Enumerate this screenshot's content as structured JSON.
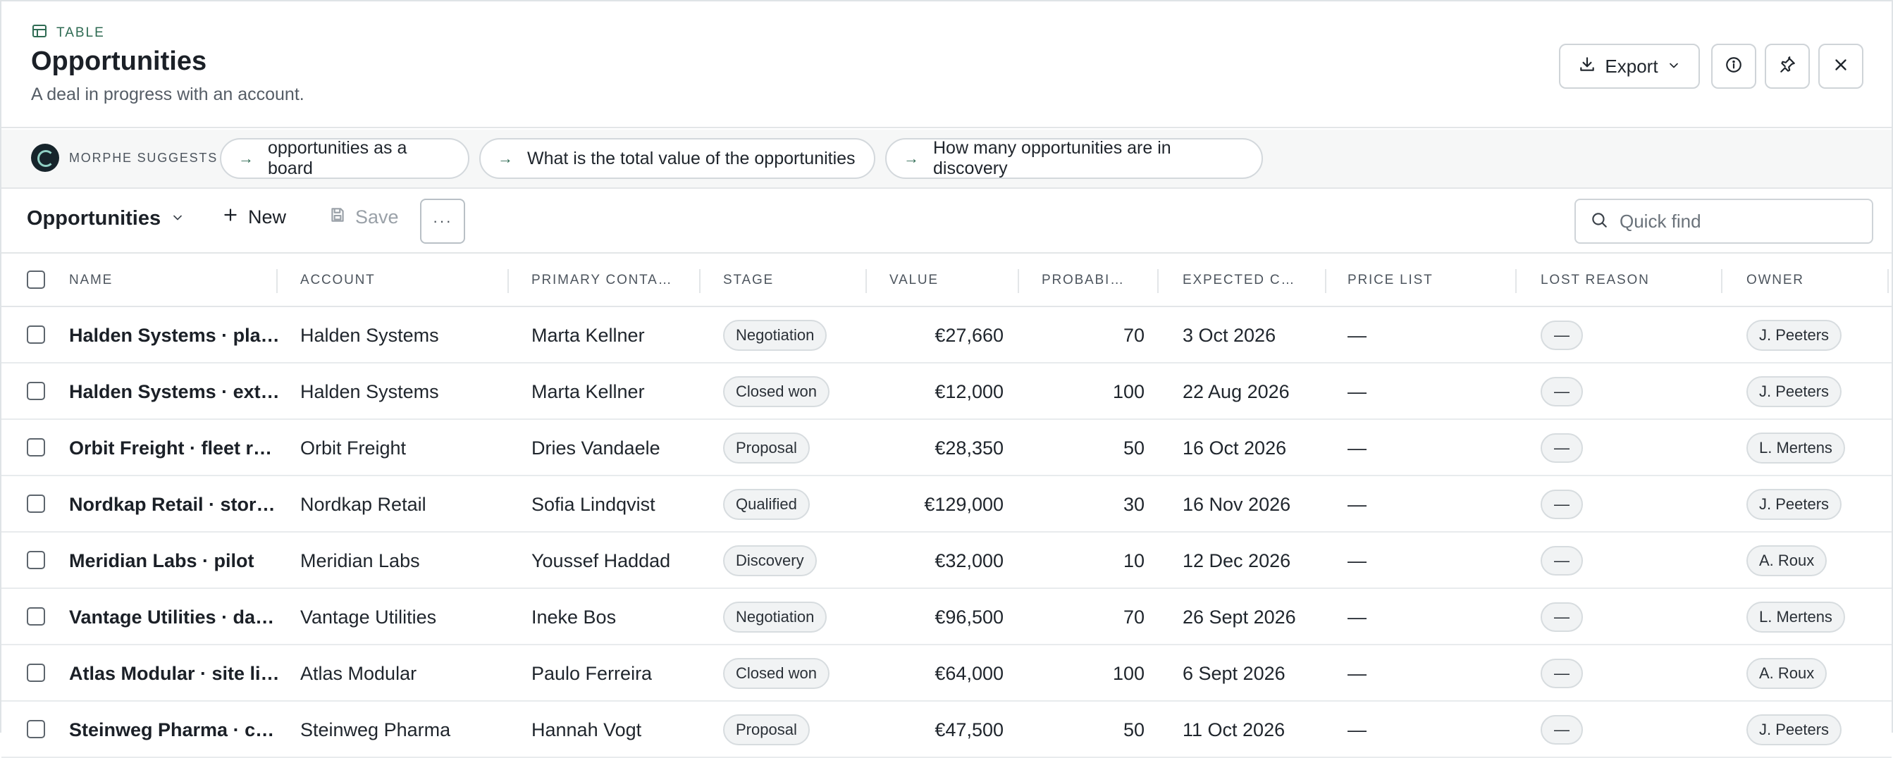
{
  "header": {
    "kicker": "TABLE",
    "title": "Opportunities",
    "subtitle": "A deal in progress with an account.",
    "export_label": "Export"
  },
  "suggestions": {
    "label": "MORPHE SUGGESTS",
    "chips": [
      "opportunities as a board",
      "What is the total value of the opportunities",
      "How many opportunities are in discovery"
    ]
  },
  "toolbar": {
    "view_name": "Opportunities",
    "new_label": "New",
    "save_label": "Save",
    "more_label": "···",
    "search_placeholder": "Quick find"
  },
  "table": {
    "columns": [
      "NAME",
      "ACCOUNT",
      "PRIMARY CONTA…",
      "STAGE",
      "VALUE",
      "PROBABI…",
      "EXPECTED C…",
      "PRICE LIST",
      "LOST REASON",
      "OWNER"
    ],
    "rows": [
      {
        "name": "Halden Systems · pla…",
        "account": "Halden Systems",
        "contact": "Marta Kellner",
        "stage": "Negotiation",
        "value": "€27,660",
        "probability": "70",
        "expected": "3 Oct 2026",
        "price_list": "—",
        "lost_reason": "—",
        "owner": "J. Peeters"
      },
      {
        "name": "Halden Systems · ext…",
        "account": "Halden Systems",
        "contact": "Marta Kellner",
        "stage": "Closed won",
        "value": "€12,000",
        "probability": "100",
        "expected": "22 Aug 2026",
        "price_list": "—",
        "lost_reason": "—",
        "owner": "J. Peeters"
      },
      {
        "name": "Orbit Freight · fleet r…",
        "account": "Orbit Freight",
        "contact": "Dries Vandaele",
        "stage": "Proposal",
        "value": "€28,350",
        "probability": "50",
        "expected": "16 Oct 2026",
        "price_list": "—",
        "lost_reason": "—",
        "owner": "L. Mertens"
      },
      {
        "name": "Nordkap Retail · stor…",
        "account": "Nordkap Retail",
        "contact": "Sofia Lindqvist",
        "stage": "Qualified",
        "value": "€129,000",
        "probability": "30",
        "expected": "16 Nov 2026",
        "price_list": "—",
        "lost_reason": "—",
        "owner": "J. Peeters"
      },
      {
        "name": "Meridian Labs · pilot",
        "account": "Meridian Labs",
        "contact": "Youssef Haddad",
        "stage": "Discovery",
        "value": "€32,000",
        "probability": "10",
        "expected": "12 Dec 2026",
        "price_list": "—",
        "lost_reason": "—",
        "owner": "A. Roux"
      },
      {
        "name": "Vantage Utilities · da…",
        "account": "Vantage Utilities",
        "contact": "Ineke Bos",
        "stage": "Negotiation",
        "value": "€96,500",
        "probability": "70",
        "expected": "26 Sept 2026",
        "price_list": "—",
        "lost_reason": "—",
        "owner": "L. Mertens"
      },
      {
        "name": "Atlas Modular · site li…",
        "account": "Atlas Modular",
        "contact": "Paulo Ferreira",
        "stage": "Closed won",
        "value": "€64,000",
        "probability": "100",
        "expected": "6 Sept 2026",
        "price_list": "—",
        "lost_reason": "—",
        "owner": "A. Roux"
      },
      {
        "name": "Steinweg Pharma · c…",
        "account": "Steinweg Pharma",
        "contact": "Hannah Vogt",
        "stage": "Proposal",
        "value": "€47,500",
        "probability": "50",
        "expected": "11 Oct 2026",
        "price_list": "—",
        "lost_reason": "—",
        "owner": "J. Peeters"
      }
    ]
  }
}
